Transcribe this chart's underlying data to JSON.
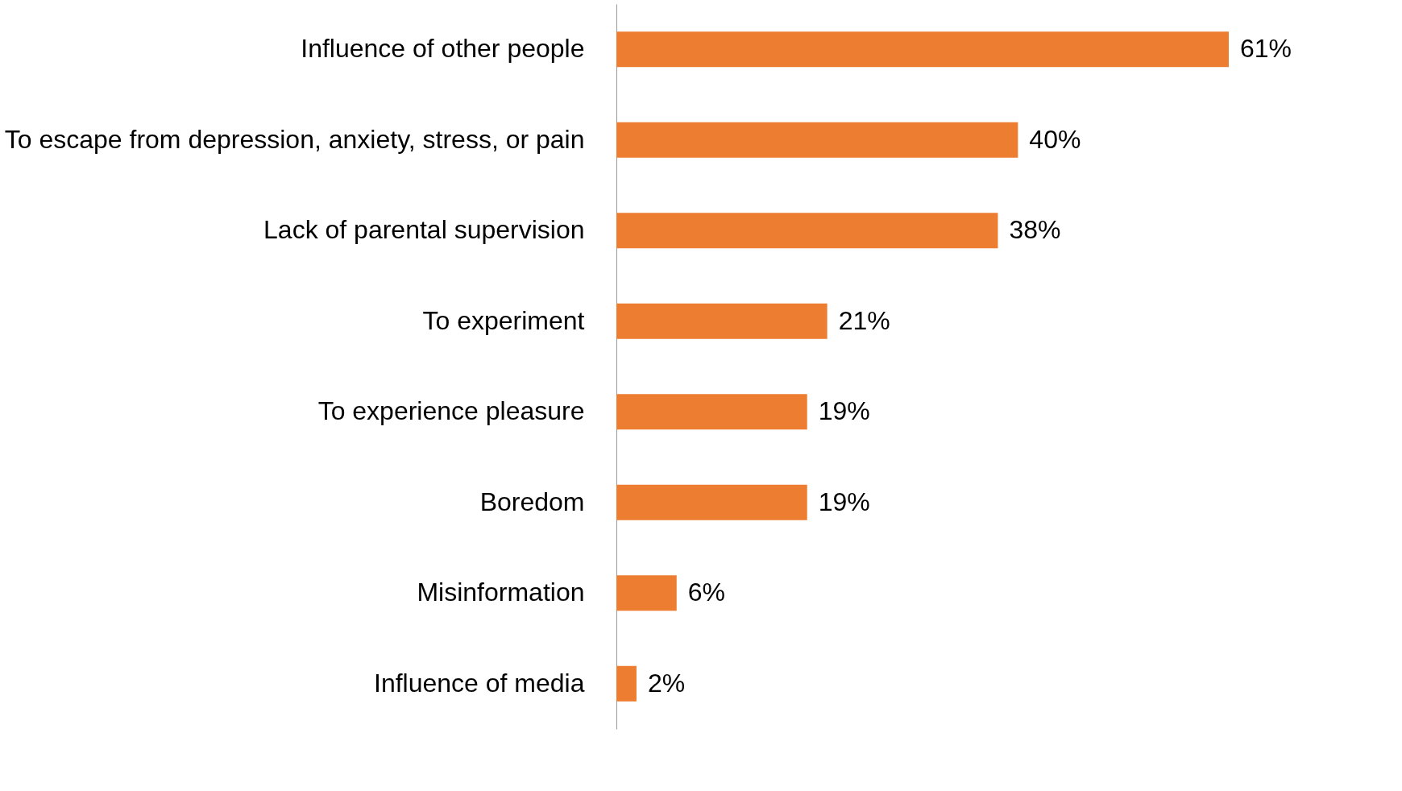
{
  "chart_data": {
    "type": "bar",
    "orientation": "horizontal",
    "categories": [
      "Influence of other people",
      "To escape from depression, anxiety, stress, or pain",
      "Lack of parental supervision",
      "To experiment",
      "To experience pleasure",
      "Boredom",
      "Misinformation",
      "Influence of media"
    ],
    "values": [
      61,
      40,
      38,
      21,
      19,
      19,
      6,
      2
    ],
    "value_labels": [
      "61%",
      "40%",
      "38%",
      "21%",
      "19%",
      "19%",
      "6%",
      "2%"
    ],
    "color": "#ed7d31"
  }
}
